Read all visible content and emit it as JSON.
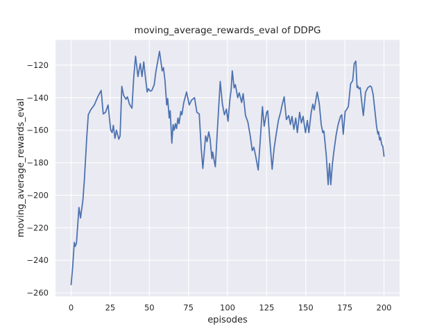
{
  "figure": {
    "title": "moving_average_rewards_eval of DDPG",
    "xlabel": "episodes",
    "ylabel": "moving_average_rewards_eval"
  },
  "colors": {
    "figure_background": "#ffffff",
    "plot_background": "#EAEAF2",
    "grid": "#FFFFFF",
    "line": "#4C72B0",
    "text": "#262626"
  },
  "chart_data": {
    "type": "line",
    "title": "moving_average_rewards_eval of DDPG",
    "xlabel": "episodes",
    "ylabel": "moving_average_rewards_eval",
    "xlim": [
      -10,
      210
    ],
    "ylim": [
      -262.2,
      -104.5
    ],
    "xticks": [
      0,
      25,
      50,
      75,
      100,
      125,
      150,
      175,
      200
    ],
    "xtick_labels": [
      "0",
      "25",
      "50",
      "75",
      "100",
      "125",
      "150",
      "175",
      "200"
    ],
    "yticks": [
      -120,
      -140,
      -160,
      -180,
      -200,
      -220,
      -240,
      -260
    ],
    "ytick_labels": [
      "−120",
      "−140",
      "−160",
      "−180",
      "−200",
      "−220",
      "−240",
      "−260"
    ],
    "grid": true,
    "legend": false,
    "series": [
      {
        "name": "moving_average_rewards_eval",
        "color": "#4C72B0",
        "x": [
          0,
          1,
          2,
          2.6,
          3.4,
          5,
          6,
          7.5,
          8.5,
          10,
          11,
          12.5,
          14.8,
          17,
          19.2,
          20.5,
          22,
          23.6,
          25.3,
          26.2,
          27,
          28,
          29,
          30.5,
          31.3,
          32.4,
          33.5,
          35,
          36,
          37.3,
          38.9,
          40,
          41.2,
          42.7,
          44.2,
          45.3,
          46.4,
          47.6,
          48.6,
          49.4,
          50.6,
          51.6,
          53.1,
          54.2,
          56.5,
          58.2,
          59,
          60,
          61.1,
          61.7,
          62.7,
          63.3,
          64.4,
          65.2,
          65.9,
          66.7,
          67.4,
          68.3,
          69,
          70.1,
          70.8,
          72,
          73.8,
          75.5,
          77,
          78.9,
          80.4,
          81.9,
          83.2,
          84.2,
          86,
          86.9,
          88,
          88.8,
          90,
          90.5,
          91.3,
          92.2,
          93.6,
          95.3,
          96.7,
          98,
          99.3,
          100.3,
          101.5,
          102.3,
          103,
          104.2,
          105,
          106.5,
          107.5,
          109,
          110,
          111.5,
          113,
          114.6,
          115.8,
          116.8,
          118,
          119.6,
          121,
          122.3,
          123.4,
          125,
          125.7,
          126.8,
          127.7,
          128.5,
          129.7,
          131,
          132.5,
          134,
          135,
          136.2,
          137.6,
          139.1,
          140.2,
          141.2,
          142.4,
          143.6,
          144.6,
          146.1,
          147.2,
          148.3,
          149.8,
          151,
          152,
          153.5,
          154.5,
          155.4,
          157.3,
          158.7,
          159.9,
          160.9,
          161.6,
          163.1,
          164.3,
          165.2,
          166,
          167,
          168,
          169.4,
          170.7,
          172.2,
          173,
          174,
          175.2,
          176,
          177.2,
          178.7,
          180,
          181,
          182,
          182.8,
          183.3,
          184,
          184.8,
          186,
          186.8,
          188.2,
          189.7,
          191.2,
          192,
          193.1,
          193.8,
          194.6,
          195.3,
          196.1,
          196.6,
          197.2,
          197.8,
          198.5,
          199.3,
          200
        ],
        "y": [
          -255,
          -244,
          -229,
          -231.5,
          -229.5,
          -207.5,
          -214,
          -203,
          -190,
          -164,
          -150.5,
          -147.5,
          -144.5,
          -139.5,
          -135.5,
          -150,
          -149,
          -144.5,
          -160,
          -161.5,
          -157,
          -165,
          -160,
          -165.5,
          -163.5,
          -133,
          -138.5,
          -141,
          -139.5,
          -144,
          -146.5,
          -128,
          -114.5,
          -127,
          -119,
          -127,
          -118,
          -128.5,
          -136.5,
          -134.5,
          -136,
          -135.5,
          -132,
          -124,
          -111.5,
          -123.5,
          -121.5,
          -129.5,
          -144.5,
          -140.5,
          -152.5,
          -148,
          -168,
          -156.5,
          -160,
          -156,
          -159,
          -152.5,
          -156,
          -148.5,
          -150.5,
          -143,
          -136.5,
          -144.5,
          -141.5,
          -140,
          -149,
          -150,
          -171.5,
          -183.5,
          -163.5,
          -167,
          -161,
          -165,
          -177.5,
          -173.5,
          -178,
          -182.5,
          -158,
          -130,
          -144,
          -150.5,
          -147,
          -154.5,
          -141,
          -135,
          -123.5,
          -134,
          -132,
          -140,
          -137,
          -143,
          -137.5,
          -151,
          -155,
          -164,
          -172.5,
          -170.5,
          -176,
          -184.5,
          -165,
          -145.5,
          -157.5,
          -149,
          -148,
          -163,
          -174.5,
          -184,
          -171.5,
          -163,
          -154,
          -148.5,
          -144,
          -139.5,
          -153.5,
          -151,
          -156.5,
          -151.5,
          -159.5,
          -152.5,
          -161.5,
          -149,
          -155.5,
          -151.5,
          -161.5,
          -154,
          -161.5,
          -149,
          -144,
          -147.5,
          -136.5,
          -144,
          -156.5,
          -161.5,
          -160.5,
          -175.5,
          -193.5,
          -180.5,
          -193.5,
          -181,
          -173,
          -163,
          -156.5,
          -151.5,
          -150.5,
          -162.5,
          -148.5,
          -147.5,
          -145.5,
          -131.5,
          -129.5,
          -119,
          -117.5,
          -133.8,
          -132.8,
          -134.5,
          -133.8,
          -144.5,
          -151,
          -136.7,
          -133.8,
          -132.8,
          -133.4,
          -138,
          -144.5,
          -151.6,
          -158,
          -162.3,
          -161,
          -166,
          -164.5,
          -168.7,
          -170,
          -176
        ]
      }
    ]
  }
}
